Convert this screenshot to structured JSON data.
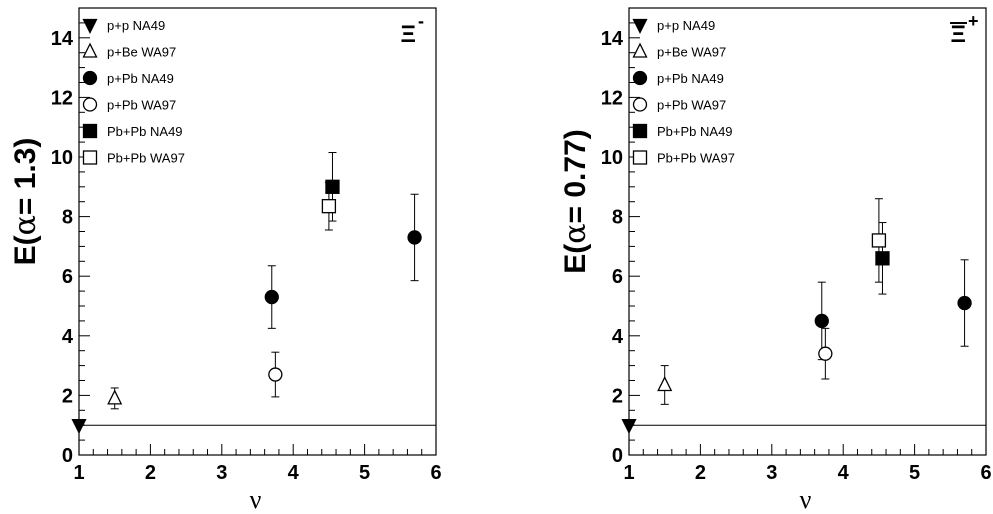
{
  "chart_data": [
    {
      "type": "scatter",
      "panel": "left",
      "particle_label": "Ξ",
      "particle_charge": "-",
      "ylabel_prefix": "E(",
      "ylabel_alpha": "α",
      "ylabel_suffix": "= 1.3)",
      "xlabel": "ν",
      "xlim": [
        1,
        6
      ],
      "ylim": [
        0,
        15
      ],
      "xticks": [
        "1",
        "2",
        "3",
        "4",
        "5",
        "6"
      ],
      "yticks": [
        "0",
        "2",
        "4",
        "6",
        "8",
        "10",
        "12",
        "14"
      ],
      "reference_line_y": 1,
      "legend_position": "top-left",
      "series": [
        {
          "name": "p+p  NA49",
          "marker": "triangle-down-filled",
          "points": [
            {
              "x": 1.0,
              "y": 1.0,
              "err": 0
            }
          ]
        },
        {
          "name": "p+Be  WA97",
          "marker": "triangle-up-open",
          "points": [
            {
              "x": 1.5,
              "y": 1.9,
              "err": 0.35
            }
          ]
        },
        {
          "name": "p+Pb  NA49",
          "marker": "circle-filled",
          "points": [
            {
              "x": 3.7,
              "y": 5.3,
              "err": 1.05
            },
            {
              "x": 5.7,
              "y": 7.3,
              "err": 1.45
            }
          ]
        },
        {
          "name": "p+Pb  WA97",
          "marker": "circle-open",
          "points": [
            {
              "x": 3.75,
              "y": 2.7,
              "err": 0.75
            }
          ]
        },
        {
          "name": "Pb+Pb NA49",
          "marker": "square-filled",
          "points": [
            {
              "x": 4.55,
              "y": 9.0,
              "err": 1.15
            }
          ]
        },
        {
          "name": "Pb+Pb WA97",
          "marker": "square-open",
          "points": [
            {
              "x": 4.5,
              "y": 8.35,
              "err": 0.8
            }
          ]
        }
      ]
    },
    {
      "type": "scatter",
      "panel": "right",
      "particle_label": "Ξ",
      "particle_charge": "+",
      "ylabel_prefix": "E(",
      "ylabel_alpha": "α",
      "ylabel_suffix": "= 0.77)",
      "xlabel": "ν",
      "xlim": [
        1,
        6
      ],
      "ylim": [
        0,
        15
      ],
      "xticks": [
        "1",
        "2",
        "3",
        "4",
        "5",
        "6"
      ],
      "yticks": [
        "0",
        "2",
        "4",
        "6",
        "8",
        "10",
        "12",
        "14"
      ],
      "reference_line_y": 1,
      "legend_position": "top-left",
      "series": [
        {
          "name": "p+p  NA49",
          "marker": "triangle-down-filled",
          "points": [
            {
              "x": 1.0,
              "y": 1.0,
              "err": 0
            }
          ]
        },
        {
          "name": "p+Be  WA97",
          "marker": "triangle-up-open",
          "points": [
            {
              "x": 1.5,
              "y": 2.35,
              "err": 0.65
            }
          ]
        },
        {
          "name": "p+Pb  NA49",
          "marker": "circle-filled",
          "points": [
            {
              "x": 3.7,
              "y": 4.5,
              "err": 1.3
            },
            {
              "x": 5.7,
              "y": 5.1,
              "err": 1.45
            }
          ]
        },
        {
          "name": "p+Pb  WA97",
          "marker": "circle-open",
          "points": [
            {
              "x": 3.75,
              "y": 3.4,
              "err": 0.85
            }
          ]
        },
        {
          "name": "Pb+Pb NA49",
          "marker": "square-filled",
          "points": [
            {
              "x": 4.55,
              "y": 6.6,
              "err": 1.2
            }
          ]
        },
        {
          "name": "Pb+Pb WA97",
          "marker": "square-open",
          "points": [
            {
              "x": 4.5,
              "y": 7.2,
              "err": 1.4
            }
          ]
        }
      ]
    }
  ]
}
